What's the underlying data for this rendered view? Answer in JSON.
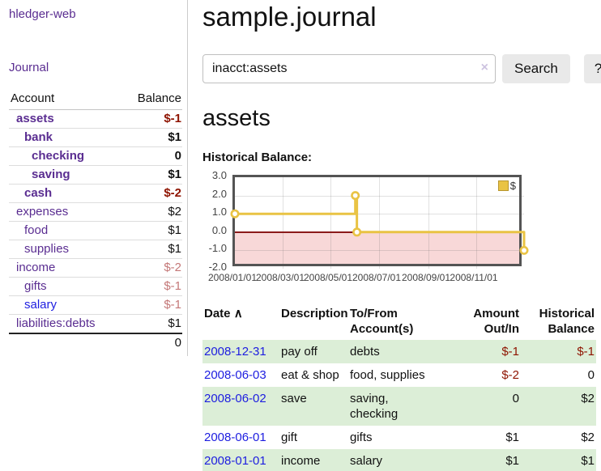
{
  "sidebar": {
    "brand": "hledger-web",
    "journal_link": "Journal",
    "accounts": {
      "header": {
        "account": "Account",
        "balance": "Balance"
      },
      "rows": [
        {
          "name": "assets",
          "balance": "$-1"
        },
        {
          "name": "bank",
          "balance": "$1"
        },
        {
          "name": "checking",
          "balance": "0"
        },
        {
          "name": "saving",
          "balance": "$1"
        },
        {
          "name": "cash",
          "balance": "$-2"
        },
        {
          "name": "expenses",
          "balance": "$2"
        },
        {
          "name": "food",
          "balance": "$1"
        },
        {
          "name": "supplies",
          "balance": "$1"
        },
        {
          "name": "income",
          "balance": "$-2"
        },
        {
          "name": "gifts",
          "balance": "$-1"
        },
        {
          "name": "salary",
          "balance": "$-1"
        },
        {
          "name": "liabilities:debts",
          "balance": "$1"
        }
      ],
      "total": "0"
    }
  },
  "header": {
    "title": "sample.journal"
  },
  "search": {
    "value": "inacct:assets",
    "clear_icon": "×",
    "search_button": "Search",
    "help_button": "?"
  },
  "account_view": {
    "heading": "assets",
    "chart_title": "Historical Balance:"
  },
  "chart_data": {
    "type": "line",
    "title": "Historical Balance",
    "step": true,
    "legend": "$",
    "legend_position": "top-right",
    "x": [
      "2008-01-01",
      "2008-06-01",
      "2008-06-03",
      "2008-12-31"
    ],
    "values": [
      1,
      2,
      0,
      -1
    ],
    "xrange": [
      "2008-01-01",
      "2008-12-31"
    ],
    "ylim": [
      -2,
      3
    ],
    "yticks": [
      "3.0",
      "2.0",
      "1.0",
      "0.0",
      "-1.0",
      "-2.0"
    ],
    "xticks": [
      "2008/01/01",
      "2008/03/01",
      "2008/05/01",
      "2008/07/01",
      "2008/09/01",
      "2008/11/01"
    ],
    "grid": true,
    "line_color": "#e9c344",
    "marker_fill": "#ffffff",
    "negative_band_color": "#f8d8d8",
    "zero_line_color": "#8b1a1a"
  },
  "register": {
    "headers": {
      "date": "Date",
      "sort_icon": "∧",
      "description": "Description",
      "accounts": "To/From Account(s)",
      "amount": "Amount Out/In",
      "balance": "Historical Balance"
    },
    "rows": [
      {
        "date": "2008-12-31",
        "description": "pay off",
        "accounts": "debts",
        "amount": "$-1",
        "balance": "$-1"
      },
      {
        "date": "2008-06-03",
        "description": "eat & shop",
        "accounts": "food, supplies",
        "amount": "$-2",
        "balance": "0"
      },
      {
        "date": "2008-06-02",
        "description": "save",
        "accounts": "saving, checking",
        "amount": "0",
        "balance": "$2"
      },
      {
        "date": "2008-06-01",
        "description": "gift",
        "accounts": "gifts",
        "amount": "$1",
        "balance": "$2"
      },
      {
        "date": "2008-01-01",
        "description": "income",
        "accounts": "salary",
        "amount": "$1",
        "balance": "$1"
      }
    ]
  }
}
